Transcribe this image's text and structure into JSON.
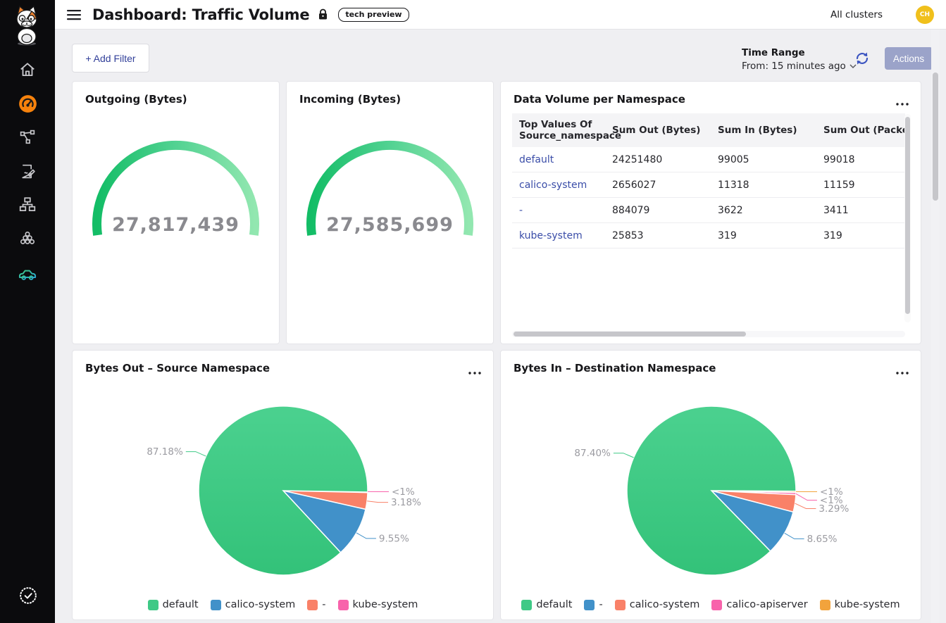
{
  "header": {
    "title": "Dashboard: Traffic Volume",
    "badge": "tech preview",
    "clusters": "All clusters",
    "avatar_initials": "CH"
  },
  "toolbar": {
    "add_filter_label": "+ Add Filter",
    "time_range_label": "Time Range",
    "time_range_value": "From: 15 minutes ago",
    "actions_label": "Actions"
  },
  "sidebar": {
    "icons": [
      "cat-logo",
      "home",
      "dashboard-gauge (active)",
      "network-graph",
      "report",
      "sitemap",
      "cluster-circles",
      "car",
      "verified-check"
    ],
    "active_color": "#f6820c"
  },
  "colors": {
    "link": "#3a4da8",
    "actions_button_bg": "#9ba3c9",
    "avatar_bg": "#f0c01c",
    "gauge_value_text": "#8a8a8f",
    "gauge_arc_start": "#13bd66",
    "gauge_arc_end": "#92e7b0"
  },
  "chart_data": [
    {
      "type": "gauge",
      "title": "Outgoing (Bytes)",
      "value": 27817439,
      "display": "27,817,439"
    },
    {
      "type": "gauge",
      "title": "Incoming (Bytes)",
      "value": 27585699,
      "display": "27,585,699"
    },
    {
      "type": "table",
      "title": "Data Volume per Namespace",
      "columns": [
        "Top Values Of Source_namespace",
        "Sum Out (Bytes)",
        "Sum In (Bytes)",
        "Sum Out (Packets)"
      ],
      "rows": [
        {
          "namespace": "default",
          "values": [
            "24251480",
            "99005",
            "99018"
          ]
        },
        {
          "namespace": "calico-system",
          "values": [
            "2656027",
            "11318",
            "11159"
          ]
        },
        {
          "namespace": "-",
          "values": [
            "884079",
            "3622",
            "3411"
          ]
        },
        {
          "namespace": "kube-system",
          "values": [
            "25853",
            "319",
            "319"
          ]
        }
      ]
    },
    {
      "type": "pie",
      "title": "Bytes Out – Source Namespace",
      "slices": [
        {
          "name": "default",
          "pct": 87.18,
          "label": "87.18%",
          "color": "#3fc986",
          "gradient": true
        },
        {
          "name": "calico-system",
          "pct": 9.55,
          "label": "9.55%",
          "color": "#4191c9"
        },
        {
          "name": "-",
          "pct": 3.18,
          "label": "3.18%",
          "color": "#f98168"
        },
        {
          "name": "kube-system",
          "pct": 0.09,
          "label": "<1%",
          "color": "#f863ab"
        }
      ]
    },
    {
      "type": "pie",
      "title": "Bytes In – Destination Namespace",
      "slices": [
        {
          "name": "default",
          "pct": 87.4,
          "label": "87.40%",
          "color": "#3fc986",
          "gradient": true
        },
        {
          "name": "-",
          "pct": 8.65,
          "label": "8.65%",
          "color": "#4191c9"
        },
        {
          "name": "calico-system",
          "pct": 3.29,
          "label": "3.29%",
          "color": "#f98168"
        },
        {
          "name": "calico-apiserver",
          "pct": 0.41,
          "label": "<1%",
          "color": "#f863ab"
        },
        {
          "name": "kube-system",
          "pct": 0.25,
          "label": "<1%",
          "color": "#f2a33c"
        }
      ]
    }
  ]
}
